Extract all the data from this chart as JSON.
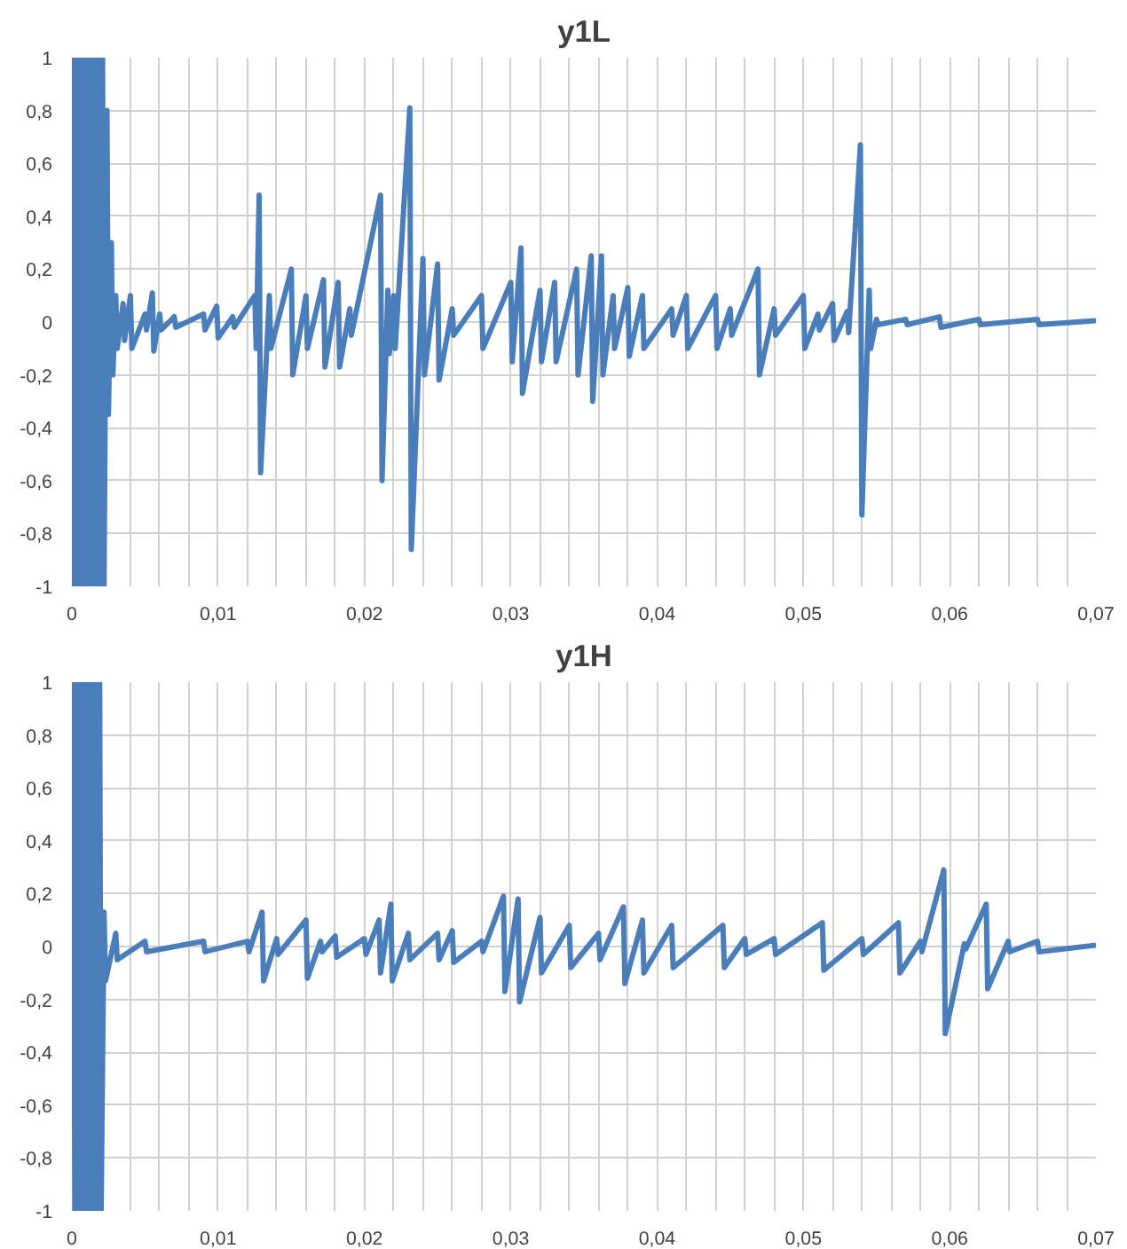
{
  "chart_data": [
    {
      "type": "line",
      "title": "y1L",
      "grid": true,
      "marker": "none",
      "line_style": "solid",
      "xlim": [
        0,
        0.07
      ],
      "ylim": [
        -1,
        1
      ],
      "xticks": [
        {
          "value": 0,
          "label": "0"
        },
        {
          "value": 0.004,
          "label": null
        },
        {
          "value": 0.006,
          "label": null
        },
        {
          "value": 0.008,
          "label": null
        },
        {
          "value": 0.01,
          "label": "0,01"
        },
        {
          "value": 0.012,
          "label": null
        },
        {
          "value": 0.014,
          "label": null
        },
        {
          "value": 0.016,
          "label": null
        },
        {
          "value": 0.018,
          "label": null
        },
        {
          "value": 0.02,
          "label": "0,02"
        },
        {
          "value": 0.022,
          "label": null
        },
        {
          "value": 0.024,
          "label": null
        },
        {
          "value": 0.026,
          "label": null
        },
        {
          "value": 0.028,
          "label": null
        },
        {
          "value": 0.03,
          "label": "0,03"
        },
        {
          "value": 0.032,
          "label": null
        },
        {
          "value": 0.034,
          "label": null
        },
        {
          "value": 0.036,
          "label": null
        },
        {
          "value": 0.038,
          "label": null
        },
        {
          "value": 0.04,
          "label": "0,04"
        },
        {
          "value": 0.042,
          "label": null
        },
        {
          "value": 0.044,
          "label": null
        },
        {
          "value": 0.046,
          "label": null
        },
        {
          "value": 0.048,
          "label": null
        },
        {
          "value": 0.05,
          "label": "0,05"
        },
        {
          "value": 0.052,
          "label": null
        },
        {
          "value": 0.054,
          "label": null
        },
        {
          "value": 0.056,
          "label": null
        },
        {
          "value": 0.058,
          "label": null
        },
        {
          "value": 0.06,
          "label": "0,06"
        },
        {
          "value": 0.062,
          "label": null
        },
        {
          "value": 0.064,
          "label": null
        },
        {
          "value": 0.066,
          "label": null
        },
        {
          "value": 0.068,
          "label": null
        },
        {
          "value": 0.07,
          "label": "0,07"
        }
      ],
      "yticks": [
        {
          "value": -1,
          "label": "-1"
        },
        {
          "value": -0.8,
          "label": "-0,8"
        },
        {
          "value": -0.6,
          "label": "-0,6"
        },
        {
          "value": -0.4,
          "label": "-0,4"
        },
        {
          "value": -0.2,
          "label": "-0,2"
        },
        {
          "value": 0,
          "label": "0"
        },
        {
          "value": 0.2,
          "label": "0,2"
        },
        {
          "value": 0.4,
          "label": "0,4"
        },
        {
          "value": 0.6,
          "label": "0,6"
        },
        {
          "value": 0.8,
          "label": "0,8"
        },
        {
          "value": 1,
          "label": "1"
        }
      ],
      "series": [
        {
          "color": "#4a7ebb",
          "x": [
            0,
            0.0001,
            0.0003,
            0.0004,
            0.0006,
            0.0007,
            0.0009,
            0.001,
            0.0012,
            0.0013,
            0.0015,
            0.0016,
            0.0018,
            0.0019,
            0.0021,
            0.0022,
            0.0024,
            0.0025,
            0.0027,
            0.0028,
            0.003,
            0.0031,
            0.0035,
            0.0036,
            0.004,
            0.0041,
            0.005,
            0.0051,
            0.0055,
            0.0056,
            0.006,
            0.0061,
            0.007,
            0.0071,
            0.009,
            0.0091,
            0.0099,
            0.01,
            0.011,
            0.0111,
            0.0125,
            0.0126,
            0.0128,
            0.0129,
            0.0135,
            0.0136,
            0.015,
            0.0151,
            0.016,
            0.0161,
            0.0172,
            0.0173,
            0.0182,
            0.0183,
            0.019,
            0.0191,
            0.0211,
            0.0212,
            0.0216,
            0.0217,
            0.022,
            0.0221,
            0.0231,
            0.0232,
            0.024,
            0.0241,
            0.025,
            0.0251,
            0.026,
            0.0261,
            0.028,
            0.0281,
            0.03,
            0.0301,
            0.0307,
            0.0308,
            0.032,
            0.0321,
            0.033,
            0.0331,
            0.0345,
            0.0346,
            0.0355,
            0.0356,
            0.0362,
            0.0363,
            0.037,
            0.0371,
            0.038,
            0.0381,
            0.039,
            0.0391,
            0.041,
            0.0411,
            0.042,
            0.0421,
            0.044,
            0.0441,
            0.045,
            0.0451,
            0.0469,
            0.047,
            0.048,
            0.0481,
            0.05,
            0.0501,
            0.051,
            0.0511,
            0.052,
            0.0521,
            0.053,
            0.0531,
            0.0539,
            0.054,
            0.0545,
            0.0546,
            0.055,
            0.0551,
            0.057,
            0.0571,
            0.0593,
            0.0594,
            0.062,
            0.0621,
            0.066,
            0.0661,
            0.07
          ],
          "values": [
            1,
            -1,
            1,
            -1,
            1,
            -1,
            1,
            -1,
            1,
            -1,
            1,
            -1,
            1,
            -1,
            1,
            -1,
            0.8,
            -0.35,
            0.3,
            -0.2,
            0.1,
            -0.1,
            0.07,
            -0.07,
            0.1,
            -0.1,
            0.03,
            -0.03,
            0.11,
            -0.11,
            0.03,
            -0.03,
            0.02,
            -0.02,
            0.03,
            -0.03,
            0.06,
            -0.06,
            0.02,
            -0.02,
            0.1,
            -0.1,
            0.48,
            -0.57,
            0.1,
            -0.1,
            0.2,
            -0.2,
            0.1,
            -0.1,
            0.16,
            -0.17,
            0.15,
            -0.17,
            0.05,
            -0.05,
            0.48,
            -0.6,
            0.12,
            -0.12,
            0.1,
            -0.1,
            0.81,
            -0.86,
            0.24,
            -0.2,
            0.22,
            -0.22,
            0.05,
            -0.05,
            0.1,
            -0.1,
            0.15,
            -0.15,
            0.28,
            -0.27,
            0.12,
            -0.15,
            0.15,
            -0.15,
            0.2,
            -0.2,
            0.25,
            -0.3,
            0.25,
            -0.2,
            0.1,
            -0.1,
            0.13,
            -0.13,
            0.1,
            -0.1,
            0.05,
            -0.05,
            0.1,
            -0.1,
            0.1,
            -0.1,
            0.05,
            -0.05,
            0.2,
            -0.2,
            0.05,
            -0.05,
            0.1,
            -0.1,
            0.03,
            -0.03,
            0.07,
            -0.07,
            0.04,
            -0.04,
            0.67,
            -0.73,
            0.12,
            -0.1,
            0.01,
            -0.01,
            0.01,
            -0.01,
            0.02,
            -0.02,
            0.01,
            -0.01,
            0.01,
            -0.01,
            0.005
          ]
        }
      ]
    },
    {
      "type": "line",
      "title": "y1H",
      "grid": true,
      "marker": "none",
      "line_style": "solid",
      "xlim": [
        0,
        0.07
      ],
      "ylim": [
        -1,
        1
      ],
      "xticks": [
        {
          "value": 0,
          "label": "0"
        },
        {
          "value": 0.004,
          "label": null
        },
        {
          "value": 0.006,
          "label": null
        },
        {
          "value": 0.008,
          "label": null
        },
        {
          "value": 0.01,
          "label": "0,01"
        },
        {
          "value": 0.012,
          "label": null
        },
        {
          "value": 0.014,
          "label": null
        },
        {
          "value": 0.016,
          "label": null
        },
        {
          "value": 0.018,
          "label": null
        },
        {
          "value": 0.02,
          "label": "0,02"
        },
        {
          "value": 0.022,
          "label": null
        },
        {
          "value": 0.024,
          "label": null
        },
        {
          "value": 0.026,
          "label": null
        },
        {
          "value": 0.028,
          "label": null
        },
        {
          "value": 0.03,
          "label": "0,03"
        },
        {
          "value": 0.032,
          "label": null
        },
        {
          "value": 0.034,
          "label": null
        },
        {
          "value": 0.036,
          "label": null
        },
        {
          "value": 0.038,
          "label": null
        },
        {
          "value": 0.04,
          "label": "0,04"
        },
        {
          "value": 0.042,
          "label": null
        },
        {
          "value": 0.044,
          "label": null
        },
        {
          "value": 0.046,
          "label": null
        },
        {
          "value": 0.048,
          "label": null
        },
        {
          "value": 0.05,
          "label": "0,05"
        },
        {
          "value": 0.052,
          "label": null
        },
        {
          "value": 0.054,
          "label": null
        },
        {
          "value": 0.056,
          "label": null
        },
        {
          "value": 0.058,
          "label": null
        },
        {
          "value": 0.06,
          "label": "0,06"
        },
        {
          "value": 0.062,
          "label": null
        },
        {
          "value": 0.064,
          "label": null
        },
        {
          "value": 0.066,
          "label": null
        },
        {
          "value": 0.068,
          "label": null
        },
        {
          "value": 0.07,
          "label": "0,07"
        }
      ],
      "yticks": [
        {
          "value": -1,
          "label": "-1"
        },
        {
          "value": -0.8,
          "label": "-0,8"
        },
        {
          "value": -0.6,
          "label": "-0,6"
        },
        {
          "value": -0.4,
          "label": "-0,4"
        },
        {
          "value": -0.2,
          "label": "-0,2"
        },
        {
          "value": 0,
          "label": "0"
        },
        {
          "value": 0.2,
          "label": "0,2"
        },
        {
          "value": 0.4,
          "label": "0,4"
        },
        {
          "value": 0.6,
          "label": "0,6"
        },
        {
          "value": 0.8,
          "label": "0,8"
        },
        {
          "value": 1,
          "label": "1"
        }
      ],
      "series": [
        {
          "color": "#4a7ebb",
          "x": [
            0.0001,
            0.0002,
            0.0004,
            0.0005,
            0.0007,
            0.0008,
            0.001,
            0.0011,
            0.0013,
            0.0014,
            0.0016,
            0.0017,
            0.0019,
            0.002,
            0.0022,
            0.0023,
            0.003,
            0.0031,
            0.005,
            0.0051,
            0.009,
            0.0091,
            0.012,
            0.0121,
            0.013,
            0.0131,
            0.014,
            0.0141,
            0.016,
            0.0161,
            0.017,
            0.0171,
            0.018,
            0.0181,
            0.02,
            0.0201,
            0.021,
            0.0211,
            0.0218,
            0.0219,
            0.023,
            0.0231,
            0.025,
            0.0251,
            0.026,
            0.0261,
            0.028,
            0.0281,
            0.0295,
            0.0296,
            0.0305,
            0.0306,
            0.032,
            0.0321,
            0.034,
            0.0341,
            0.036,
            0.0361,
            0.0377,
            0.0378,
            0.039,
            0.0391,
            0.041,
            0.0411,
            0.0445,
            0.0446,
            0.046,
            0.0461,
            0.048,
            0.0481,
            0.0513,
            0.0514,
            0.054,
            0.0541,
            0.0565,
            0.0566,
            0.058,
            0.0581,
            0.0596,
            0.0597,
            0.061,
            0.0611,
            0.0625,
            0.0626,
            0.064,
            0.0641,
            0.066,
            0.0661,
            0.07
          ],
          "values": [
            1,
            -1,
            1,
            -1,
            1,
            -1,
            1,
            -1,
            1,
            -1,
            1,
            -1,
            1,
            -1,
            0.13,
            -0.13,
            0.05,
            -0.05,
            0.02,
            -0.02,
            0.02,
            -0.02,
            0.02,
            -0.02,
            0.13,
            -0.13,
            0.03,
            -0.03,
            0.1,
            -0.12,
            0.02,
            -0.02,
            0.04,
            -0.04,
            0.03,
            -0.03,
            0.1,
            -0.1,
            0.16,
            -0.13,
            0.05,
            -0.05,
            0.05,
            -0.05,
            0.06,
            -0.06,
            0.02,
            -0.02,
            0.19,
            -0.17,
            0.18,
            -0.21,
            0.11,
            -0.1,
            0.08,
            -0.08,
            0.05,
            -0.05,
            0.15,
            -0.14,
            0.1,
            -0.1,
            0.08,
            -0.08,
            0.08,
            -0.08,
            0.03,
            -0.03,
            0.03,
            -0.03,
            0.09,
            -0.09,
            0.03,
            -0.03,
            0.09,
            -0.1,
            0.02,
            -0.02,
            0.29,
            -0.33,
            0.01,
            -0.01,
            0.16,
            -0.16,
            0.02,
            -0.02,
            0.02,
            -0.02,
            0.005
          ]
        }
      ]
    }
  ]
}
